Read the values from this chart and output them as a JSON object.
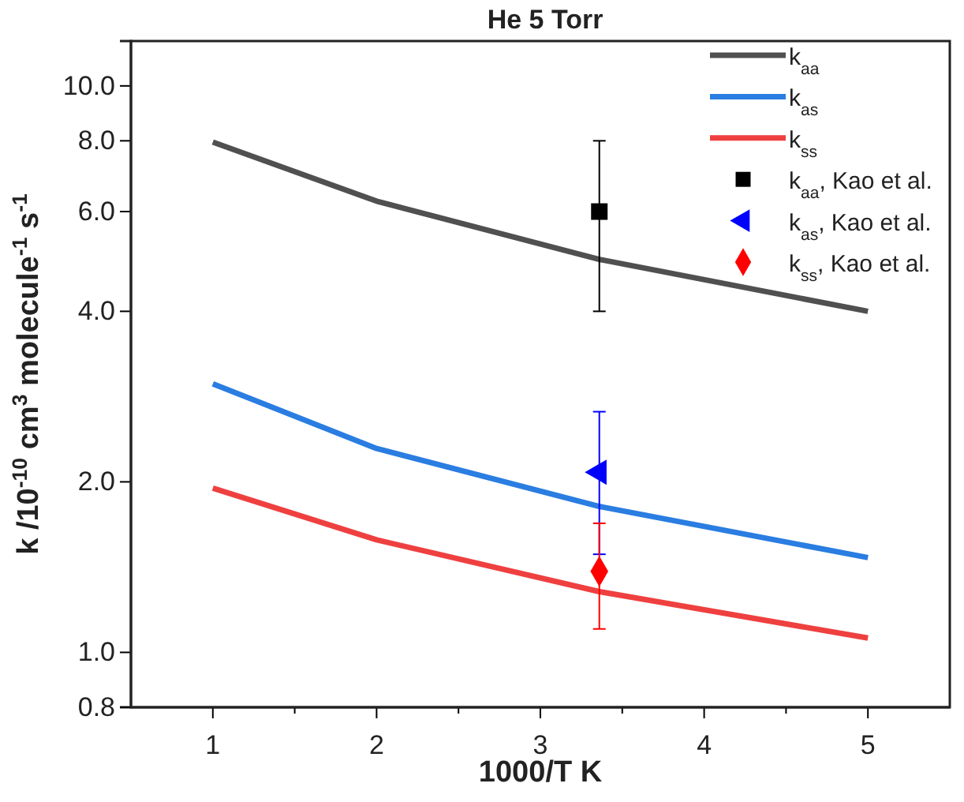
{
  "chart_data": {
    "type": "line",
    "title": "He 5 Torr",
    "xlabel": "1000/T K",
    "ylabel": "k /10$^{-10}$ cm$^{3}$ molecule$^{-1}$ s$^{-1}$",
    "log": "y",
    "xlim": [
      0.5,
      5.5
    ],
    "ylim": [
      0.8,
      12
    ],
    "xticks": [
      {
        "value": 1,
        "label": "1"
      },
      {
        "value": 1.5,
        "label": null
      },
      {
        "value": 2,
        "label": "2"
      },
      {
        "value": 2.5,
        "label": null
      },
      {
        "value": 3,
        "label": "3"
      },
      {
        "value": 3.5,
        "label": null
      },
      {
        "value": 4,
        "label": "4"
      },
      {
        "value": 4.5,
        "label": null
      },
      {
        "value": 5,
        "label": "5"
      }
    ],
    "yticks": [
      {
        "value": 0.8,
        "label": "0.8"
      },
      {
        "value": 1,
        "label": "1.0"
      },
      {
        "value": 2,
        "label": "2.0"
      },
      {
        "value": 4,
        "label": "4.0"
      },
      {
        "value": 6,
        "label": "6.0"
      },
      {
        "value": 8,
        "label": "8.0"
      },
      {
        "value": 10,
        "label": "10.0"
      }
    ],
    "grid": false,
    "legend": "top right",
    "series": [
      {
        "name": "k$_{aa}$",
        "color": "#505050",
        "x": [
          1,
          2,
          3.36,
          5
        ],
        "values": [
          7.96,
          6.26,
          4.94,
          4.0
        ]
      },
      {
        "name": "k$_{as}$",
        "color": "#2a7de1",
        "x": [
          1,
          2,
          3.36,
          5
        ],
        "values": [
          2.98,
          2.29,
          1.81,
          1.47
        ]
      },
      {
        "name": "k$_{ss}$",
        "color": "#ef4040",
        "x": [
          1,
          2,
          3.36,
          5
        ],
        "values": [
          1.95,
          1.58,
          1.28,
          1.06
        ]
      },
      {
        "type": "scatter",
        "name": "k$_{aa}$, Kao et al.",
        "color": "#000000",
        "marker": "square",
        "x": [
          3.36
        ],
        "values": [
          6.0
        ],
        "errors": [
          [
            4.0,
            8.0
          ]
        ]
      },
      {
        "type": "scatter",
        "name": "k$_{as}$, Kao et al.",
        "color": "#0000ff",
        "marker": "triangle",
        "x": [
          3.36
        ],
        "values": [
          2.08
        ],
        "errors": [
          [
            1.49,
            2.66
          ]
        ]
      },
      {
        "type": "scatter",
        "name": "k$_{ss}$, Kao et al.",
        "color": "#ff0000",
        "marker": "diamond",
        "x": [
          3.36
        ],
        "values": [
          1.39
        ],
        "errors": [
          [
            1.1,
            1.69
          ]
        ]
      }
    ]
  }
}
